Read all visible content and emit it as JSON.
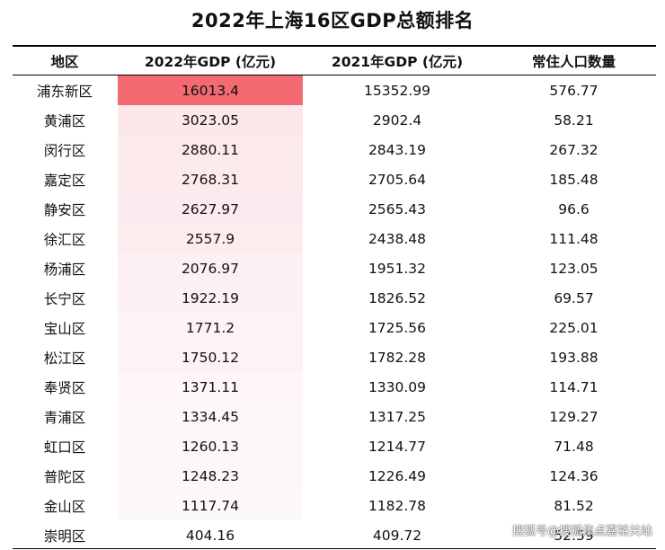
{
  "title": "2022年上海16区GDP总额排名",
  "watermark": "搜狐号@搜狐焦点嘉裕关站",
  "colors": {
    "heat_max": "#f36a72",
    "heat_min": "#ffffff",
    "rule": "#000000"
  },
  "chart_data": {
    "type": "table",
    "title": "2022年上海16区GDP总额排名",
    "columns": [
      "地区",
      "2022年GDP (亿元)",
      "2021年GDP (亿元)",
      "常住人口数量"
    ],
    "rows": [
      [
        "浦东新区",
        "16013.4",
        "15352.99",
        "576.77"
      ],
      [
        "黄浦区",
        "3023.05",
        "2902.4",
        "58.21"
      ],
      [
        "闵行区",
        "2880.11",
        "2843.19",
        "267.32"
      ],
      [
        "嘉定区",
        "2768.31",
        "2705.64",
        "185.48"
      ],
      [
        "静安区",
        "2627.97",
        "2565.43",
        "96.6"
      ],
      [
        "徐汇区",
        "2557.9",
        "2438.48",
        "111.48"
      ],
      [
        "杨浦区",
        "2076.97",
        "1951.32",
        "123.05"
      ],
      [
        "长宁区",
        "1922.19",
        "1826.52",
        "69.57"
      ],
      [
        "宝山区",
        "1771.2",
        "1725.56",
        "225.01"
      ],
      [
        "松江区",
        "1750.12",
        "1782.28",
        "193.88"
      ],
      [
        "奉贤区",
        "1371.11",
        "1330.09",
        "114.71"
      ],
      [
        "青浦区",
        "1334.45",
        "1317.25",
        "129.27"
      ],
      [
        "虹口区",
        "1260.13",
        "1214.77",
        "71.48"
      ],
      [
        "普陀区",
        "1248.23",
        "1226.49",
        "124.36"
      ],
      [
        "金山区",
        "1117.74",
        "1182.78",
        "81.52"
      ],
      [
        "崇明区",
        "404.16",
        "409.72",
        "52.59"
      ]
    ],
    "heatmap_column": 1
  }
}
